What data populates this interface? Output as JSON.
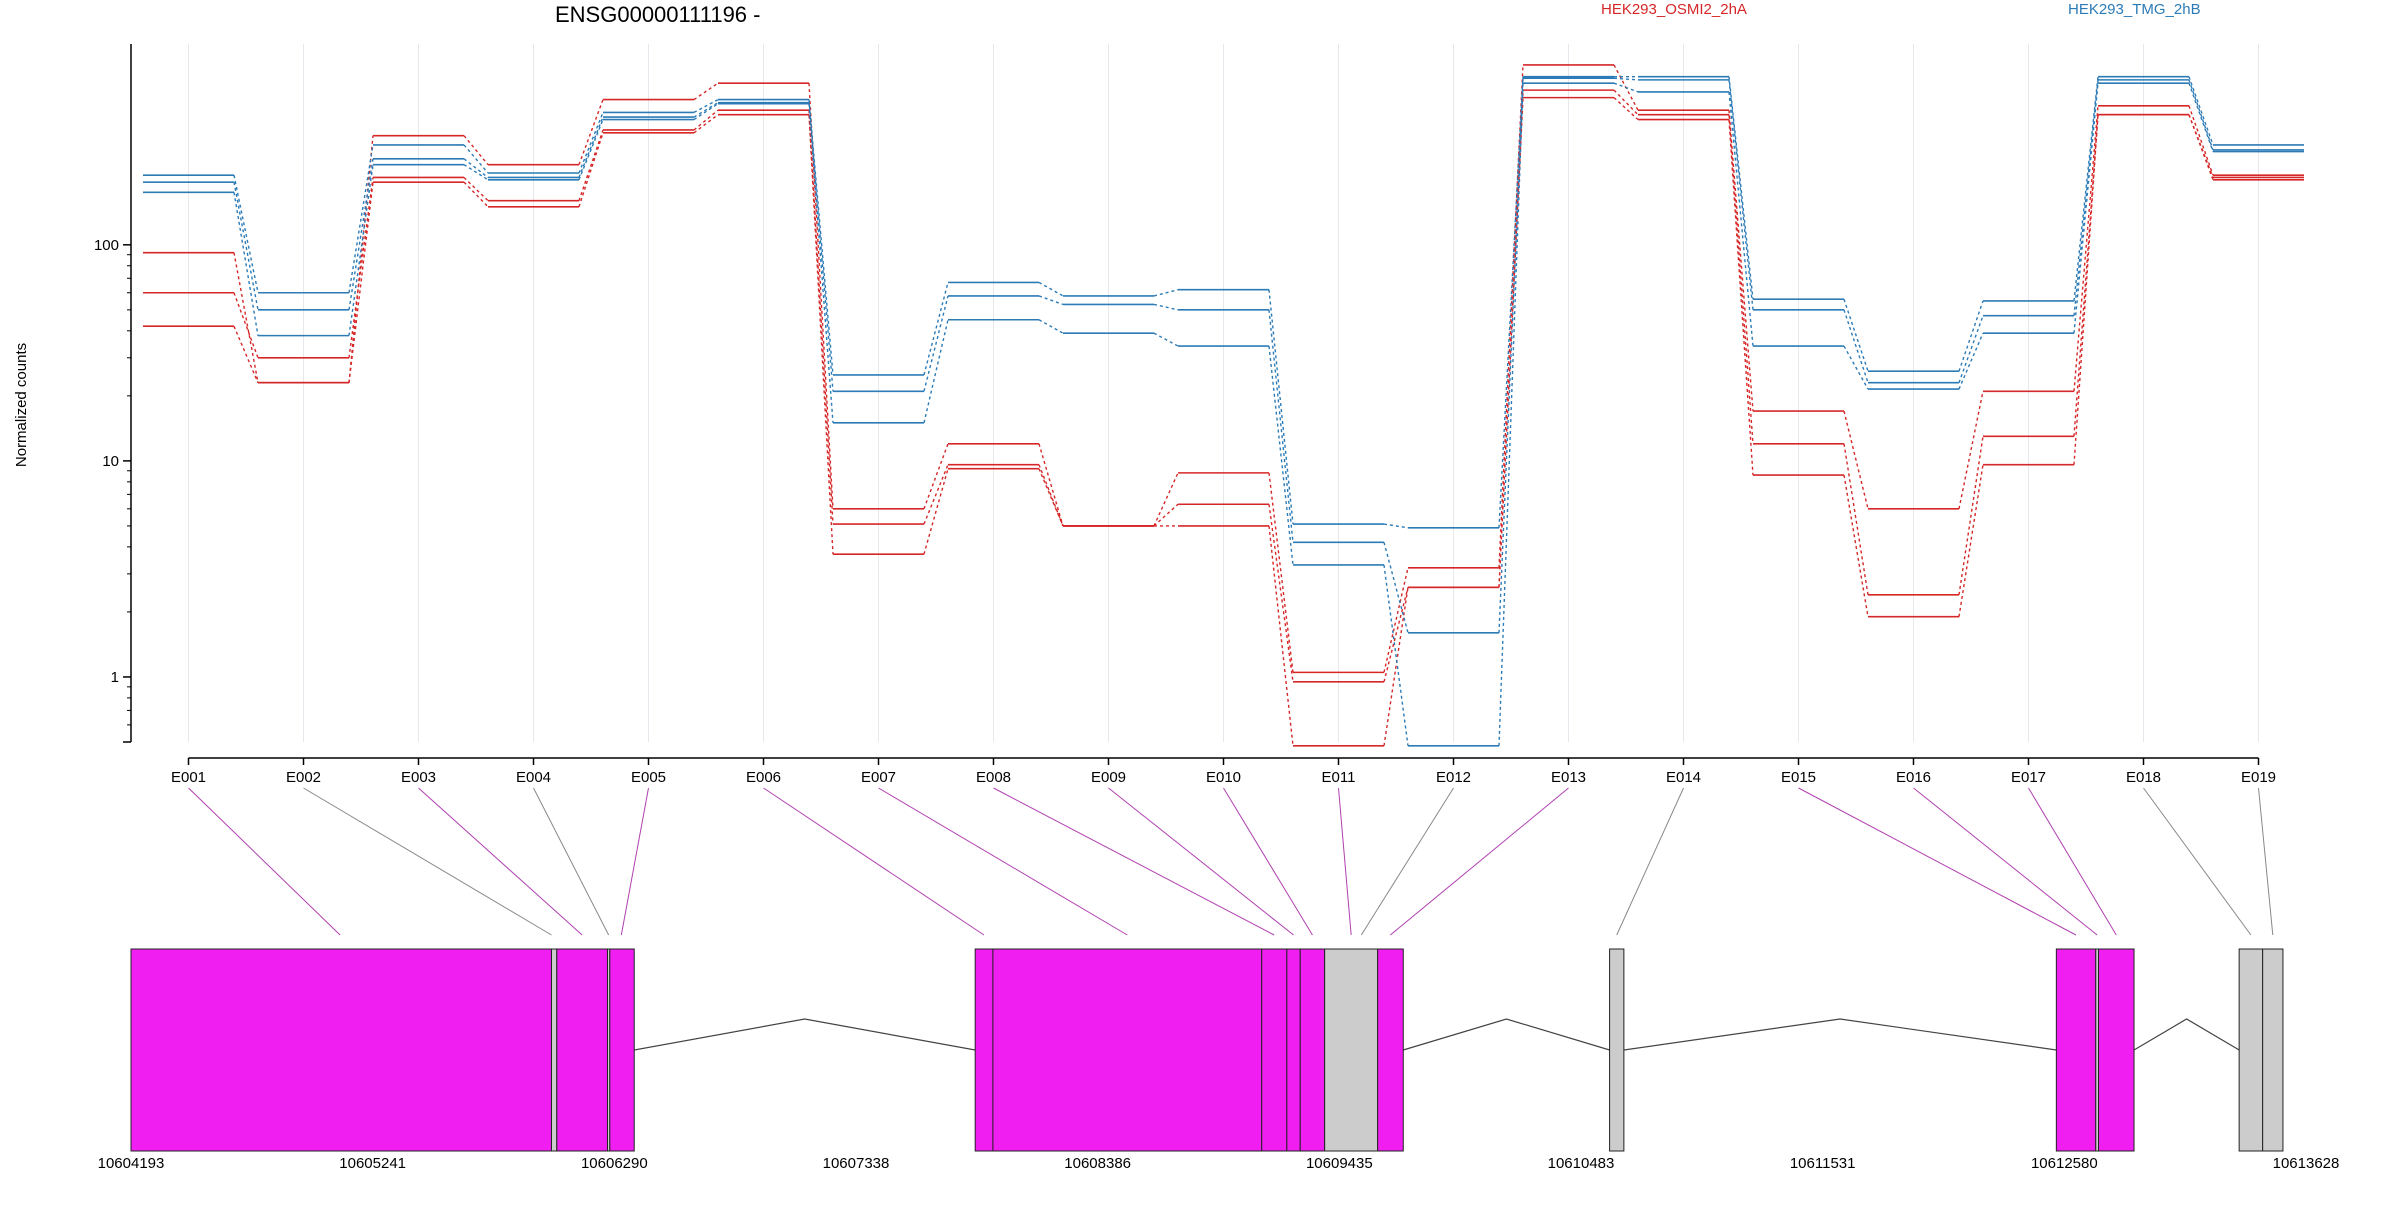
{
  "chart_data": {
    "type": "line",
    "title": "ENSG00000111196 -",
    "ylabel": "Normalized counts",
    "y_scale": "log",
    "ylim": [
      0.5,
      850
    ],
    "y_ticks": [
      {
        "value": 1,
        "label": "1"
      },
      {
        "value": 10,
        "label": "10"
      },
      {
        "value": 100,
        "label": "100"
      }
    ],
    "categories": [
      "E001",
      "E002",
      "E003",
      "E004",
      "E005",
      "E006",
      "E007",
      "E008",
      "E009",
      "E010",
      "E011",
      "E012",
      "E013",
      "E014",
      "E015",
      "E016",
      "E017",
      "E018",
      "E019"
    ],
    "legend": [
      {
        "name": "HEK293_OSMI2_2hA",
        "color": "#d62728"
      },
      {
        "name": "HEK293_TMG_2hB",
        "color": "#2c7bb6"
      }
    ],
    "series": [
      {
        "group": "HEK293_OSMI2_2hA",
        "color": "#d62728",
        "values": [
          92,
          23,
          320,
          235,
          470,
          560,
          6,
          12,
          5,
          8.8,
          1.05,
          3.2,
          680,
          420,
          17,
          6,
          21,
          440,
          210
        ]
      },
      {
        "group": "HEK293_OSMI2_2hA",
        "color": "#d62728",
        "values": [
          60,
          30,
          205,
          160,
          340,
          420,
          5.1,
          9.6,
          5,
          6.3,
          0.95,
          2.6,
          520,
          400,
          12,
          2.4,
          13,
          400,
          205
        ]
      },
      {
        "group": "HEK293_OSMI2_2hA",
        "color": "#d62728",
        "values": [
          42,
          23,
          195,
          150,
          330,
          400,
          3.7,
          9.2,
          5,
          5,
          0.48,
          2.6,
          480,
          380,
          8.6,
          1.9,
          9.6,
          400,
          200
        ]
      },
      {
        "group": "HEK293_TMG_2hB",
        "color": "#2c7bb6",
        "values": [
          210,
          60,
          290,
          215,
          410,
          470,
          25,
          67,
          58,
          62,
          5.1,
          4.9,
          600,
          600,
          56,
          26,
          55,
          600,
          290
        ]
      },
      {
        "group": "HEK293_TMG_2hB",
        "color": "#2c7bb6",
        "values": [
          195,
          50,
          250,
          205,
          390,
          455,
          21,
          58,
          53,
          50,
          4.2,
          1.6,
          590,
          580,
          50,
          23,
          47,
          580,
          275
        ]
      },
      {
        "group": "HEK293_TMG_2hB",
        "color": "#2c7bb6",
        "values": [
          175,
          38,
          235,
          200,
          380,
          450,
          15,
          45,
          39,
          34,
          3.3,
          0.48,
          560,
          510,
          34,
          21.5,
          39,
          560,
          270
        ]
      }
    ],
    "gene_model": {
      "genomic_ticks": [
        "10604193",
        "10605241",
        "10606290",
        "10607338",
        "10608386",
        "10609435",
        "10610483",
        "10611531",
        "10612580",
        "10613628"
      ],
      "range": [
        10604193,
        10613628
      ],
      "blocks": [
        {
          "start": 10604193,
          "end": 10606017,
          "kind": "tested"
        },
        {
          "start": 10606017,
          "end": 10606040,
          "kind": "untested"
        },
        {
          "start": 10606040,
          "end": 10606260,
          "kind": "tested"
        },
        {
          "start": 10606260,
          "end": 10606270,
          "kind": "untested"
        },
        {
          "start": 10606270,
          "end": 10606376,
          "kind": "tested"
        },
        {
          "start": 10607855,
          "end": 10607932,
          "kind": "tested"
        },
        {
          "start": 10607932,
          "end": 10609098,
          "kind": "tested"
        },
        {
          "start": 10609098,
          "end": 10609207,
          "kind": "tested"
        },
        {
          "start": 10609207,
          "end": 10609265,
          "kind": "tested"
        },
        {
          "start": 10609265,
          "end": 10609371,
          "kind": "tested"
        },
        {
          "start": 10609371,
          "end": 10609601,
          "kind": "untested"
        },
        {
          "start": 10609601,
          "end": 10609712,
          "kind": "tested"
        },
        {
          "start": 10610607,
          "end": 10610669,
          "kind": "untested"
        },
        {
          "start": 10612545,
          "end": 10612716,
          "kind": "tested"
        },
        {
          "start": 10612716,
          "end": 10612728,
          "kind": "untested"
        },
        {
          "start": 10612728,
          "end": 10612882,
          "kind": "tested"
        },
        {
          "start": 10613338,
          "end": 10613440,
          "kind": "untested"
        },
        {
          "start": 10613440,
          "end": 10613528,
          "kind": "untested"
        }
      ],
      "introns": [
        {
          "from": 10606376,
          "to": 10607855
        },
        {
          "from": 10609712,
          "to": 10610607
        },
        {
          "from": 10610669,
          "to": 10612545
        },
        {
          "from": 10612882,
          "to": 10613338
        }
      ],
      "exon_links": [
        {
          "exon": "E001",
          "pos": 10605100,
          "kind": "tested"
        },
        {
          "exon": "E002",
          "pos": 10606017,
          "kind": "untested"
        },
        {
          "exon": "E003",
          "pos": 10606150,
          "kind": "tested"
        },
        {
          "exon": "E004",
          "pos": 10606265,
          "kind": "untested"
        },
        {
          "exon": "E005",
          "pos": 10606320,
          "kind": "tested"
        },
        {
          "exon": "E006",
          "pos": 10607893,
          "kind": "tested"
        },
        {
          "exon": "E007",
          "pos": 10608515,
          "kind": "tested"
        },
        {
          "exon": "E008",
          "pos": 10609152,
          "kind": "tested"
        },
        {
          "exon": "E009",
          "pos": 10609236,
          "kind": "tested"
        },
        {
          "exon": "E010",
          "pos": 10609318,
          "kind": "tested"
        },
        {
          "exon": "E011",
          "pos": 10609486,
          "kind": "tested"
        },
        {
          "exon": "E012",
          "pos": 10609530,
          "kind": "untested"
        },
        {
          "exon": "E013",
          "pos": 10609656,
          "kind": "tested"
        },
        {
          "exon": "E014",
          "pos": 10610638,
          "kind": "untested"
        },
        {
          "exon": "E015",
          "pos": 10612630,
          "kind": "tested"
        },
        {
          "exon": "E016",
          "pos": 10612722,
          "kind": "tested"
        },
        {
          "exon": "E017",
          "pos": 10612805,
          "kind": "tested"
        },
        {
          "exon": "E018",
          "pos": 10613389,
          "kind": "untested"
        },
        {
          "exon": "E019",
          "pos": 10613484,
          "kind": "untested"
        }
      ],
      "colors": {
        "tested": "#f01ef0",
        "untested": "#cccccc",
        "link_tested": "#b040b0",
        "link_untested": "#888888"
      }
    }
  }
}
